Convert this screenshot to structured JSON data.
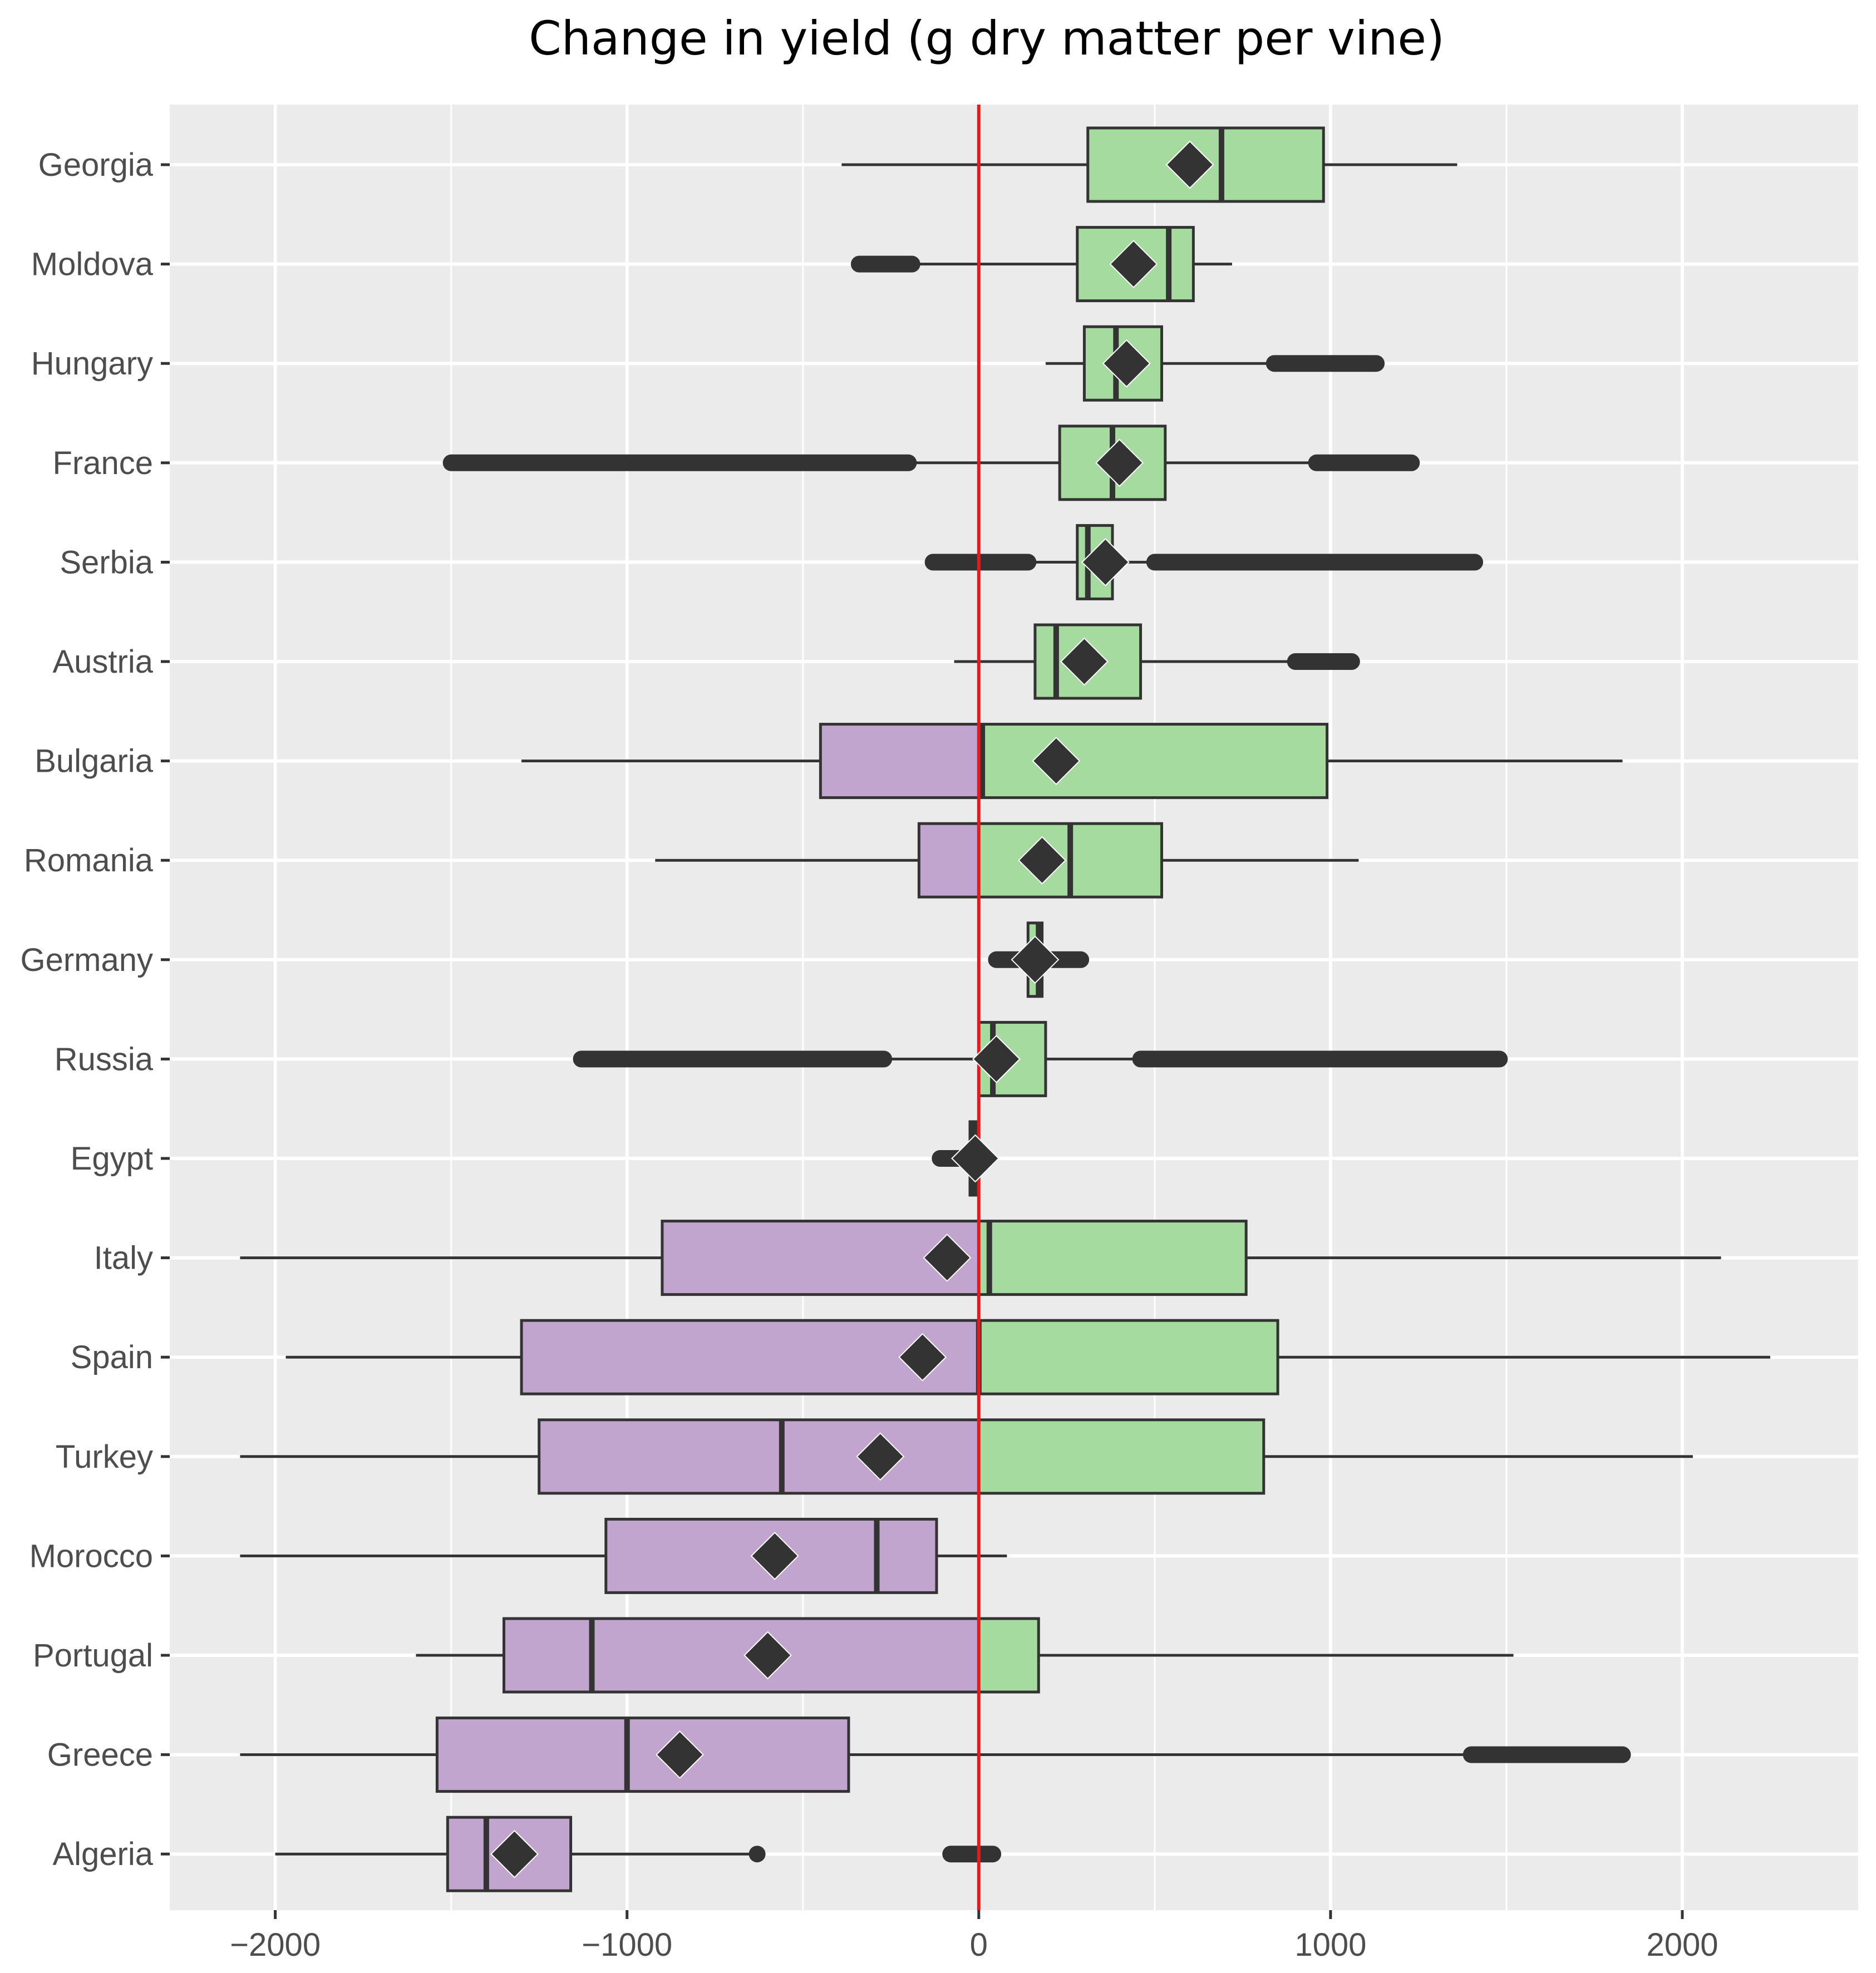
{
  "chart_data": {
    "type": "boxplot",
    "title": "Change in yield (g dry matter per vine)",
    "xlabel": "",
    "ylabel": "",
    "xlim": [
      -2300,
      2500
    ],
    "x_ticks": [
      -2000,
      -1000,
      0,
      1000,
      2000
    ],
    "x_tick_labels": [
      "−2000",
      "−1000",
      "0",
      "1000",
      "2000"
    ],
    "grid": true,
    "reference_line": {
      "x": 0,
      "color": "#e41a1c"
    },
    "colors": {
      "negative_fill": "#c2a5cf",
      "positive_fill": "#a6dba0",
      "panel_background": "#ebebeb",
      "gridline": "#ffffff",
      "box_stroke": "#333333",
      "mean_marker": "#333333"
    },
    "mean_marker": "diamond",
    "countries": [
      {
        "name": "Georgia",
        "whisker_low": -390,
        "q1": 310,
        "median": 690,
        "q3": 980,
        "whisker_high": 1360,
        "mean": 600,
        "outliers": []
      },
      {
        "name": "Moldova",
        "whisker_low": -180,
        "q1": 280,
        "median": 540,
        "q3": 610,
        "whisker_high": 720,
        "mean": 440,
        "outliers": [
          [
            -340,
            -190
          ]
        ]
      },
      {
        "name": "Hungary",
        "whisker_low": 190,
        "q1": 300,
        "median": 390,
        "q3": 520,
        "whisker_high": 830,
        "mean": 420,
        "outliers": [
          [
            840,
            1130
          ]
        ]
      },
      {
        "name": "France",
        "whisker_low": -200,
        "q1": 230,
        "median": 380,
        "q3": 530,
        "whisker_high": 960,
        "mean": 400,
        "outliers": [
          [
            -1500,
            -200
          ],
          [
            960,
            1230
          ]
        ]
      },
      {
        "name": "Serbia",
        "whisker_low": 140,
        "q1": 280,
        "median": 310,
        "q3": 380,
        "whisker_high": 500,
        "mean": 360,
        "outliers": [
          [
            -130,
            140
          ],
          [
            500,
            1410
          ]
        ]
      },
      {
        "name": "Austria",
        "whisker_low": -70,
        "q1": 160,
        "median": 220,
        "q3": 460,
        "whisker_high": 900,
        "mean": 300,
        "outliers": [
          [
            900,
            1060
          ]
        ]
      },
      {
        "name": "Bulgaria",
        "whisker_low": -1300,
        "q1": -450,
        "median": 10,
        "q3": 990,
        "whisker_high": 1830,
        "mean": 220,
        "outliers": []
      },
      {
        "name": "Romania",
        "whisker_low": -920,
        "q1": -170,
        "median": 260,
        "q3": 520,
        "whisker_high": 1080,
        "mean": 180,
        "outliers": []
      },
      {
        "name": "Germany",
        "whisker_low": 140,
        "q1": 140,
        "median": 170,
        "q3": 180,
        "whisker_high": 190,
        "mean": 160,
        "outliers": [
          [
            50,
            290
          ]
        ]
      },
      {
        "name": "Russia",
        "whisker_low": -270,
        "q1": 0,
        "median": 40,
        "q3": 190,
        "whisker_high": 460,
        "mean": 50,
        "outliers": [
          [
            -1130,
            -270
          ],
          [
            460,
            1480
          ]
        ]
      },
      {
        "name": "Egypt",
        "whisker_low": -30,
        "q1": -25,
        "median": -15,
        "q3": -5,
        "whisker_high": 0,
        "mean": -10,
        "outliers": [
          [
            -110,
            0
          ]
        ]
      },
      {
        "name": "Italy",
        "whisker_low": -2100,
        "q1": -900,
        "median": 30,
        "q3": 760,
        "whisker_high": 2110,
        "mean": -90,
        "outliers": []
      },
      {
        "name": "Spain",
        "whisker_low": -1970,
        "q1": -1300,
        "median": 0,
        "q3": 850,
        "whisker_high": 2250,
        "mean": -160,
        "outliers": []
      },
      {
        "name": "Turkey",
        "whisker_low": -2100,
        "q1": -1250,
        "median": -560,
        "q3": 810,
        "whisker_high": 2030,
        "mean": -280,
        "outliers": []
      },
      {
        "name": "Morocco",
        "whisker_low": -2100,
        "q1": -1060,
        "median": -290,
        "q3": -120,
        "whisker_high": 80,
        "mean": -580,
        "outliers": []
      },
      {
        "name": "Portugal",
        "whisker_low": -1600,
        "q1": -1350,
        "median": -1100,
        "q3": 170,
        "whisker_high": 1520,
        "mean": -600,
        "outliers": []
      },
      {
        "name": "Greece",
        "whisker_low": -2100,
        "q1": -1540,
        "median": -1000,
        "q3": -370,
        "whisker_high": 1400,
        "mean": -850,
        "outliers": [
          [
            1400,
            1830
          ]
        ]
      },
      {
        "name": "Algeria",
        "whisker_low": -2000,
        "q1": -1510,
        "median": -1400,
        "q3": -1160,
        "whisker_high": -640,
        "mean": -1320,
        "outliers": [
          [
            -630,
            -630
          ],
          [
            -80,
            40
          ]
        ]
      }
    ]
  }
}
